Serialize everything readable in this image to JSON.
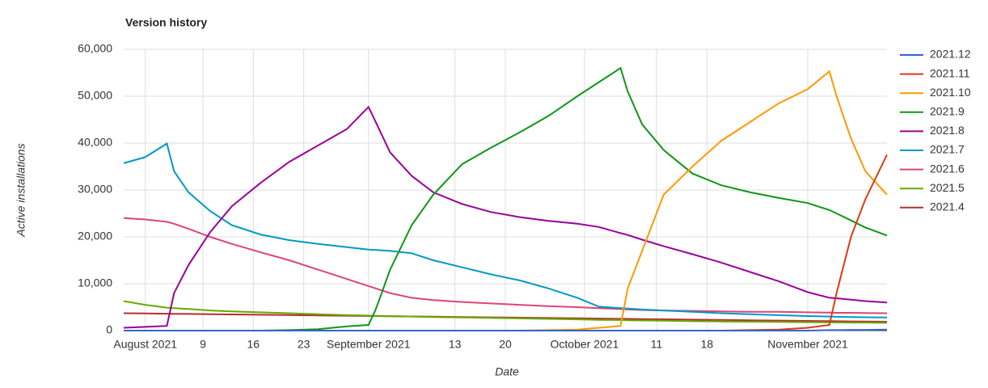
{
  "chart_data": {
    "type": "line",
    "title": "Version history",
    "x_label": "Date",
    "y_label": "Active installations",
    "x": [
      "2021-07-29",
      "2021-08-01",
      "2021-08-04",
      "2021-08-05",
      "2021-08-07",
      "2021-08-10",
      "2021-08-13",
      "2021-08-17",
      "2021-08-21",
      "2021-08-25",
      "2021-08-29",
      "2021-09-01",
      "2021-09-02",
      "2021-09-04",
      "2021-09-07",
      "2021-09-10",
      "2021-09-14",
      "2021-09-18",
      "2021-09-22",
      "2021-09-26",
      "2021-09-30",
      "2021-10-03",
      "2021-10-06",
      "2021-10-07",
      "2021-10-09",
      "2021-10-12",
      "2021-10-16",
      "2021-10-20",
      "2021-10-24",
      "2021-10-28",
      "2021-11-01",
      "2021-11-04",
      "2021-11-05",
      "2021-11-07",
      "2021-11-09",
      "2021-11-12"
    ],
    "xlim": [
      "2021-07-29",
      "2021-11-12"
    ],
    "xticks": [
      {
        "value": "2021-08-01",
        "label": "August 2021"
      },
      {
        "value": "2021-08-09",
        "label": "9"
      },
      {
        "value": "2021-08-16",
        "label": "16"
      },
      {
        "value": "2021-08-23",
        "label": "23"
      },
      {
        "value": "2021-09-01",
        "label": "September 2021"
      },
      {
        "value": "2021-09-13",
        "label": "13"
      },
      {
        "value": "2021-09-20",
        "label": "20"
      },
      {
        "value": "2021-10-01",
        "label": "October 2021"
      },
      {
        "value": "2021-10-11",
        "label": "11"
      },
      {
        "value": "2021-10-18",
        "label": "18"
      },
      {
        "value": "2021-11-01",
        "label": "November 2021"
      }
    ],
    "ylim": [
      0,
      60000
    ],
    "yticks": [
      0,
      {
        "value": 10000,
        "label": "10,000"
      },
      {
        "value": 20000,
        "label": "20,000"
      },
      {
        "value": 30000,
        "label": "30,000"
      },
      {
        "value": 40000,
        "label": "40,000"
      },
      {
        "value": 50000,
        "label": "50,000"
      },
      {
        "value": 60000,
        "label": "60,000"
      }
    ],
    "grid": true,
    "legend": "right",
    "series": [
      {
        "name": "2021.12",
        "color": "#3366cc",
        "values": [
          0,
          0,
          0,
          0,
          0,
          0,
          0,
          0,
          0,
          0,
          0,
          0,
          0,
          0,
          0,
          0,
          0,
          0,
          0,
          0,
          0,
          0,
          0,
          0,
          0,
          0,
          0,
          0,
          0,
          0,
          0,
          100,
          100,
          150,
          150,
          200
        ]
      },
      {
        "name": "2021.11",
        "color": "#dc3912",
        "values": [
          0,
          0,
          0,
          0,
          0,
          0,
          0,
          0,
          0,
          0,
          0,
          0,
          0,
          0,
          0,
          0,
          0,
          0,
          0,
          0,
          0,
          0,
          0,
          0,
          0,
          0,
          0,
          0,
          100,
          200,
          600,
          1200,
          8000,
          20000,
          28000,
          37500
        ]
      },
      {
        "name": "2021.10",
        "color": "#ff9900",
        "values": [
          0,
          0,
          0,
          0,
          0,
          0,
          0,
          0,
          0,
          0,
          0,
          0,
          0,
          0,
          0,
          0,
          0,
          0,
          0,
          100,
          200,
          600,
          1000,
          9000,
          17000,
          29000,
          35000,
          40500,
          44500,
          48500,
          51500,
          55300,
          50000,
          41000,
          34000,
          29000
        ]
      },
      {
        "name": "2021.9",
        "color": "#109618",
        "values": [
          0,
          0,
          0,
          0,
          0,
          0,
          0,
          0,
          100,
          300,
          900,
          1200,
          4500,
          13000,
          22500,
          29000,
          35500,
          39000,
          42300,
          45800,
          50000,
          53000,
          56000,
          51000,
          44000,
          38500,
          33500,
          31000,
          29500,
          28300,
          27200,
          25700,
          25000,
          23500,
          22000,
          20300
        ]
      },
      {
        "name": "2021.8",
        "color": "#990099",
        "values": [
          600,
          800,
          1000,
          8000,
          14000,
          21000,
          26500,
          31500,
          36000,
          39500,
          43000,
          47700,
          44500,
          38000,
          33000,
          29500,
          27000,
          25300,
          24200,
          23400,
          22800,
          22100,
          20800,
          20400,
          19400,
          18000,
          16300,
          14500,
          12500,
          10500,
          8200,
          7000,
          6900,
          6600,
          6300,
          6000
        ]
      },
      {
        "name": "2021.7",
        "color": "#0099c6",
        "values": [
          35700,
          37000,
          39900,
          34000,
          29500,
          25500,
          22500,
          20500,
          19300,
          18500,
          17800,
          17300,
          17200,
          17000,
          16500,
          15000,
          13500,
          12000,
          10700,
          9000,
          7000,
          5100,
          4800,
          4700,
          4500,
          4300,
          4000,
          3700,
          3500,
          3300,
          3100,
          3000,
          2950,
          2900,
          2850,
          2800
        ]
      },
      {
        "name": "2021.6",
        "color": "#dd4477",
        "values": [
          24000,
          23700,
          23200,
          22800,
          21700,
          20000,
          18500,
          16700,
          15000,
          13000,
          11000,
          9500,
          9000,
          8000,
          7000,
          6500,
          6100,
          5800,
          5500,
          5200,
          5000,
          4800,
          4600,
          4500,
          4400,
          4300,
          4200,
          4100,
          4000,
          4000,
          3900,
          3850,
          3800,
          3800,
          3750,
          3700
        ]
      },
      {
        "name": "2021.5",
        "color": "#66aa00",
        "values": [
          6300,
          5500,
          4900,
          4800,
          4600,
          4300,
          4100,
          3900,
          3700,
          3500,
          3300,
          3200,
          3150,
          3100,
          3000,
          2900,
          2800,
          2700,
          2600,
          2500,
          2400,
          2300,
          2250,
          2200,
          2150,
          2100,
          2000,
          1950,
          1900,
          1850,
          1800,
          1750,
          1750,
          1700,
          1700,
          1650
        ]
      },
      {
        "name": "2021.4",
        "color": "#b82e2e",
        "values": [
          3700,
          3650,
          3600,
          3580,
          3550,
          3500,
          3450,
          3380,
          3310,
          3240,
          3170,
          3120,
          3100,
          3070,
          3020,
          2970,
          2900,
          2830,
          2760,
          2690,
          2620,
          2570,
          2520,
          2500,
          2470,
          2420,
          2350,
          2280,
          2210,
          2140,
          2070,
          2020,
          2000,
          1970,
          1940,
          1890
        ]
      }
    ]
  }
}
